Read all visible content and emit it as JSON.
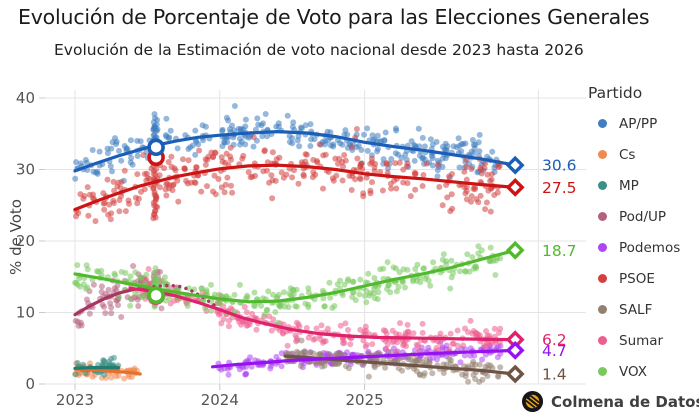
{
  "header": {
    "title": "Evolución de Porcentaje de Voto para las Elecciones Generales",
    "subtitle": "Evolución de la Estimación de voto nacional desde 2023 hasta 2026"
  },
  "branding": {
    "logo_text": "Colmena de Datos",
    "logo_icon": "bee-hive-icon"
  },
  "chart_data": {
    "type": "scatter",
    "title": "Evolución de Porcentaje de Voto para las Elecciones Generales",
    "subtitle": "Evolución de la Estimación de voto nacional desde 2023 hasta 2026",
    "xlabel": "",
    "ylabel": "% de Voto",
    "legend_title": "Partido",
    "legend_position": "right",
    "grid": true,
    "x_range": [
      2022.79,
      2026.2
    ],
    "y_range": [
      0,
      42
    ],
    "x_ticks": [
      {
        "label": "2023",
        "t": 2023.0
      },
      {
        "label": "2024",
        "t": 2024.0
      },
      {
        "label": "2025",
        "t": 2025.0
      }
    ],
    "extra_x_gridlines": [
      2026.2
    ],
    "y_ticks": [
      {
        "label": "0",
        "v": 0
      },
      {
        "label": "10",
        "v": 10
      },
      {
        "label": "20",
        "v": 20
      },
      {
        "label": "30",
        "v": 30
      },
      {
        "label": "40",
        "v": 40
      }
    ],
    "series": [
      {
        "name": "AP/PP",
        "line_color": "#1a5eb8",
        "point_color": "#407ec0",
        "z": 6,
        "trend": [
          [
            2023.0,
            29.8
          ],
          [
            2023.15,
            30.9
          ],
          [
            2023.3,
            31.9
          ],
          [
            2023.45,
            32.8
          ],
          [
            2023.56,
            33.4
          ],
          [
            2023.7,
            34.0
          ],
          [
            2023.85,
            34.5
          ],
          [
            2024.0,
            34.8
          ],
          [
            2024.2,
            35.1
          ],
          [
            2024.4,
            35.3
          ],
          [
            2024.6,
            35.1
          ],
          [
            2024.8,
            34.6
          ],
          [
            2025.0,
            33.8
          ],
          [
            2025.2,
            33.2
          ],
          [
            2025.4,
            32.7
          ],
          [
            2025.6,
            32.1
          ],
          [
            2025.8,
            31.5
          ],
          [
            2026.04,
            30.6
          ]
        ],
        "scatter": {
          "t_min": 2023.0,
          "t_max": 2025.94,
          "count": 320,
          "sd": 1.3
        },
        "burst": {
          "t": 2023.555,
          "count": 32,
          "offset": 1.2,
          "spread": 1.6
        },
        "result_marker": {
          "t": 2023.56,
          "v": 33.1
        },
        "end_marker": {
          "t": 2026.04,
          "v": 30.6
        },
        "end_label": "30.6"
      },
      {
        "name": "Cs",
        "line_color": "#e8702e",
        "point_color": "#f28a50",
        "z": 1,
        "trend": [
          [
            2023.0,
            2.1
          ],
          [
            2023.12,
            2.0
          ],
          [
            2023.25,
            1.8
          ],
          [
            2023.38,
            1.6
          ],
          [
            2023.45,
            1.4
          ]
        ],
        "scatter": {
          "t_min": 2023.0,
          "t_max": 2023.45,
          "count": 60,
          "sd": 0.45
        }
      },
      {
        "name": "MP",
        "line_color": "#1f7d72",
        "point_color": "#3a9188",
        "z": 2,
        "trend": [
          [
            2023.0,
            2.2
          ],
          [
            2023.1,
            2.3
          ],
          [
            2023.22,
            2.3
          ],
          [
            2023.3,
            2.3
          ]
        ],
        "scatter": {
          "t_min": 2023.0,
          "t_max": 2023.3,
          "count": 45,
          "sd": 0.5
        }
      },
      {
        "name": "Pod/UP",
        "line_color": "#a83562",
        "point_color": "#b4617f",
        "z": 3,
        "trend": [
          [
            2023.0,
            9.7
          ],
          [
            2023.1,
            10.9
          ],
          [
            2023.2,
            11.9
          ],
          [
            2023.3,
            12.7
          ],
          [
            2023.4,
            13.2
          ],
          [
            2023.5,
            13.5
          ]
        ],
        "trend_dotted": [
          [
            2023.5,
            13.5
          ],
          [
            2023.58,
            13.7
          ],
          [
            2023.66,
            13.8
          ],
          [
            2023.74,
            13.6
          ],
          [
            2023.82,
            12.9
          ],
          [
            2023.9,
            11.9
          ],
          [
            2023.97,
            10.9
          ]
        ],
        "scatter": {
          "t_min": 2023.0,
          "t_max": 2023.6,
          "count": 80,
          "sd": 1.3
        }
      },
      {
        "name": "Podemos",
        "line_color": "#9612f0",
        "point_color": "#ae46f2",
        "z": 8,
        "trend": [
          [
            2023.95,
            2.4
          ],
          [
            2024.1,
            2.7
          ],
          [
            2024.3,
            3.0
          ],
          [
            2024.5,
            3.3
          ],
          [
            2024.7,
            3.5
          ],
          [
            2024.9,
            3.7
          ],
          [
            2025.1,
            3.9
          ],
          [
            2025.3,
            4.1
          ],
          [
            2025.5,
            4.3
          ],
          [
            2025.75,
            4.5
          ],
          [
            2026.04,
            4.7
          ]
        ],
        "scatter": {
          "t_min": 2023.95,
          "t_max": 2025.94,
          "count": 200,
          "sd": 0.55
        },
        "end_marker": {
          "t": 2026.04,
          "v": 4.7
        },
        "end_label": "4.7"
      },
      {
        "name": "PSOE",
        "line_color": "#cc1414",
        "point_color": "#d44040",
        "z": 5,
        "trend": [
          [
            2023.0,
            24.4
          ],
          [
            2023.15,
            25.6
          ],
          [
            2023.3,
            26.7
          ],
          [
            2023.45,
            27.7
          ],
          [
            2023.56,
            28.3
          ],
          [
            2023.7,
            29.0
          ],
          [
            2023.85,
            29.6
          ],
          [
            2024.0,
            30.1
          ],
          [
            2024.2,
            30.5
          ],
          [
            2024.4,
            30.6
          ],
          [
            2024.6,
            30.4
          ],
          [
            2024.8,
            30.0
          ],
          [
            2025.0,
            29.4
          ],
          [
            2025.2,
            29.0
          ],
          [
            2025.4,
            28.7
          ],
          [
            2025.6,
            28.3
          ],
          [
            2025.8,
            27.9
          ],
          [
            2026.04,
            27.5
          ]
        ],
        "scatter": {
          "t_min": 2023.0,
          "t_max": 2025.94,
          "count": 320,
          "sd": 1.7
        },
        "burst": {
          "t": 2023.555,
          "count": 32,
          "offset": -0.8,
          "spread": 2.0
        },
        "result_marker": {
          "t": 2023.56,
          "v": 31.7
        },
        "end_marker": {
          "t": 2026.04,
          "v": 27.5
        },
        "end_label": "27.5"
      },
      {
        "name": "SALF",
        "line_color": "#6e5444",
        "point_color": "#94806f",
        "z": 4,
        "trend": [
          [
            2024.45,
            3.9
          ],
          [
            2024.6,
            3.7
          ],
          [
            2024.8,
            3.4
          ],
          [
            2025.0,
            3.1
          ],
          [
            2025.2,
            2.8
          ],
          [
            2025.4,
            2.5
          ],
          [
            2025.6,
            2.2
          ],
          [
            2025.8,
            1.9
          ],
          [
            2026.04,
            1.4
          ]
        ],
        "scatter": {
          "t_min": 2024.45,
          "t_max": 2025.94,
          "count": 170,
          "sd": 0.65
        },
        "end_marker": {
          "t": 2026.04,
          "v": 1.4
        },
        "end_label": "1.4"
      },
      {
        "name": "Sumar",
        "line_color": "#e0216b",
        "point_color": "#ed5e8f",
        "z": 7,
        "trend": [
          [
            2023.38,
            13.4
          ],
          [
            2023.56,
            12.9
          ],
          [
            2023.7,
            12.3
          ],
          [
            2023.85,
            11.4
          ],
          [
            2024.0,
            10.4
          ],
          [
            2024.15,
            9.3
          ],
          [
            2024.3,
            8.5
          ],
          [
            2024.5,
            7.6
          ],
          [
            2024.7,
            7.0
          ],
          [
            2024.9,
            6.7
          ],
          [
            2025.1,
            6.5
          ],
          [
            2025.4,
            6.4
          ],
          [
            2025.7,
            6.3
          ],
          [
            2026.04,
            6.2
          ]
        ],
        "scatter": {
          "t_min": 2023.38,
          "t_max": 2025.94,
          "count": 260,
          "sd": 0.85
        },
        "burst": {
          "t": 2023.5,
          "count": 15,
          "offset": 0.5,
          "spread": 1.0
        },
        "result_marker": {
          "t": 2023.56,
          "v": 12.3
        },
        "end_marker": {
          "t": 2026.04,
          "v": 6.2
        },
        "end_label": "6.2"
      },
      {
        "name": "VOX",
        "line_color": "#50b92e",
        "point_color": "#79c95e",
        "z": 9,
        "trend": [
          [
            2023.0,
            15.4
          ],
          [
            2023.2,
            14.7
          ],
          [
            2023.4,
            13.9
          ],
          [
            2023.56,
            13.3
          ],
          [
            2023.8,
            12.5
          ],
          [
            2024.0,
            11.9
          ],
          [
            2024.2,
            11.5
          ],
          [
            2024.4,
            11.6
          ],
          [
            2024.6,
            12.1
          ],
          [
            2024.8,
            12.8
          ],
          [
            2025.0,
            13.7
          ],
          [
            2025.2,
            14.6
          ],
          [
            2025.4,
            15.4
          ],
          [
            2025.6,
            16.3
          ],
          [
            2025.8,
            17.4
          ],
          [
            2026.04,
            18.7
          ]
        ],
        "scatter": {
          "t_min": 2023.0,
          "t_max": 2025.94,
          "count": 300,
          "sd": 1.05
        },
        "burst": {
          "t": 2023.555,
          "count": 18,
          "offset": 0.5,
          "spread": 1.3
        },
        "result_marker": {
          "t": 2023.56,
          "v": 12.4
        },
        "end_marker": {
          "t": 2026.04,
          "v": 18.7
        },
        "end_label": "18.7"
      }
    ]
  }
}
